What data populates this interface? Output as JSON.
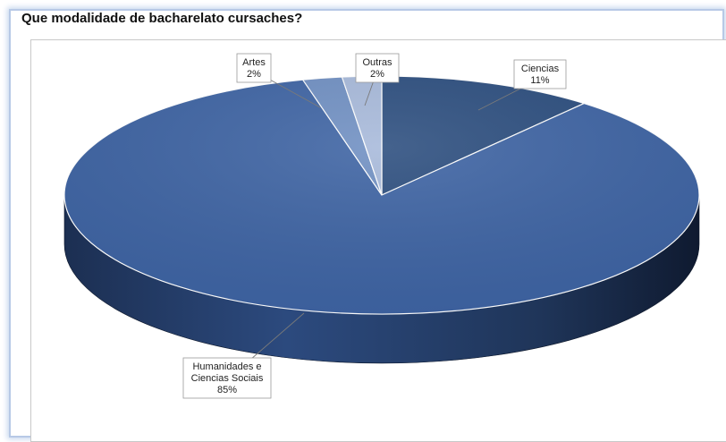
{
  "chart_data": {
    "type": "pie",
    "style": "3d",
    "title": "Que modalidade de bacharelato cursaches?",
    "slices": [
      {
        "label": "Ciencias",
        "pct_label": "11%",
        "value": 11,
        "color": "#2b4d7e"
      },
      {
        "label": "Humanidades e Ciencias Sociais",
        "label_lines": [
          "Humanidades e",
          "Ciencias Sociais"
        ],
        "pct_label": "85%",
        "value": 85,
        "color": "#3d63a3"
      },
      {
        "label": "Artes",
        "pct_label": "2%",
        "value": 2,
        "color": "#6f8fc2"
      },
      {
        "label": "Outras",
        "pct_label": "2%",
        "value": 2,
        "color": "#a7b9da"
      }
    ],
    "legend": "none"
  }
}
